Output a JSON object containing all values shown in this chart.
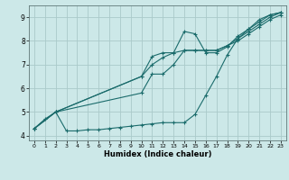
{
  "xlabel": "Humidex (Indice chaleur)",
  "bg_color": "#cce8e8",
  "grid_color": "#aacaca",
  "line_color": "#1a6b6b",
  "xlim": [
    -0.5,
    23.5
  ],
  "ylim": [
    3.8,
    9.5
  ],
  "xticks": [
    0,
    1,
    2,
    3,
    4,
    5,
    6,
    7,
    8,
    9,
    10,
    11,
    12,
    13,
    14,
    15,
    16,
    17,
    18,
    19,
    20,
    21,
    22,
    23
  ],
  "yticks": [
    4,
    5,
    6,
    7,
    8,
    9
  ],
  "lines": [
    {
      "x": [
        0,
        1,
        2,
        3,
        4,
        5,
        6,
        7,
        8,
        9,
        10,
        11,
        12,
        13,
        14,
        15,
        16,
        17,
        18,
        19,
        20,
        21,
        22,
        23
      ],
      "y": [
        4.3,
        4.7,
        5.0,
        4.2,
        4.2,
        4.25,
        4.25,
        4.3,
        4.35,
        4.4,
        4.45,
        4.5,
        4.55,
        4.55,
        4.55,
        4.9,
        5.7,
        6.5,
        7.4,
        8.1,
        8.5,
        8.8,
        9.1,
        9.2
      ]
    },
    {
      "x": [
        0,
        2,
        10,
        11,
        12,
        13,
        14,
        15,
        16,
        17,
        18,
        19,
        20,
        21,
        22,
        23
      ],
      "y": [
        4.3,
        5.0,
        6.5,
        7.35,
        7.5,
        7.5,
        8.4,
        8.3,
        7.5,
        7.5,
        7.75,
        8.2,
        8.5,
        8.9,
        9.1,
        9.2
      ]
    },
    {
      "x": [
        0,
        2,
        10,
        11,
        12,
        13,
        14,
        15,
        16,
        17,
        18,
        19,
        20,
        21,
        22,
        23
      ],
      "y": [
        4.3,
        5.0,
        6.5,
        7.0,
        7.3,
        7.5,
        7.6,
        7.6,
        7.6,
        7.6,
        7.8,
        8.1,
        8.4,
        8.7,
        9.0,
        9.2
      ]
    },
    {
      "x": [
        0,
        2,
        10,
        11,
        12,
        13,
        14,
        15,
        16,
        17,
        18,
        19,
        20,
        21,
        22,
        23
      ],
      "y": [
        4.3,
        5.0,
        5.8,
        6.6,
        6.6,
        7.0,
        7.6,
        7.6,
        7.6,
        7.6,
        7.8,
        8.0,
        8.3,
        8.6,
        8.9,
        9.1
      ]
    }
  ]
}
